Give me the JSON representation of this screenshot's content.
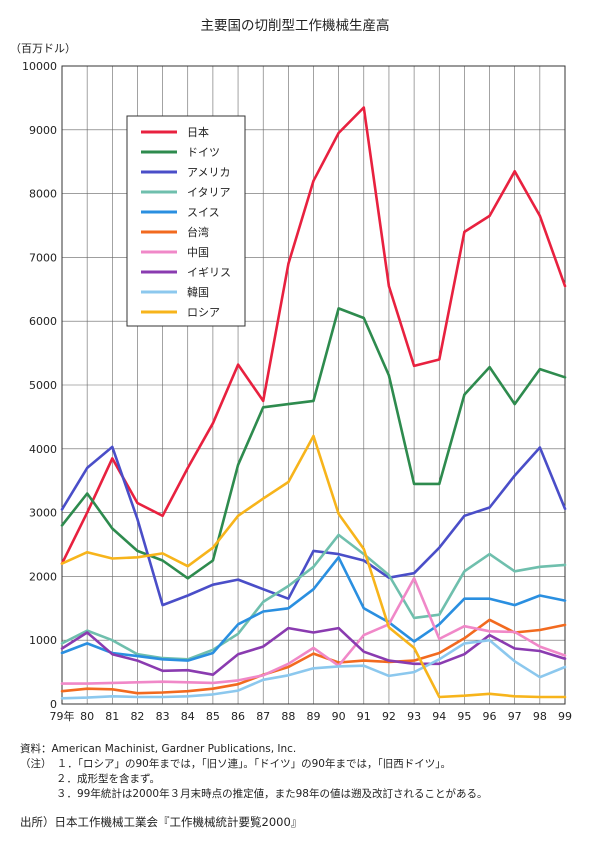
{
  "chart_data": {
    "type": "line",
    "title": "主要国の切削型工作機械生産高",
    "ylabel": "（百万ドル）",
    "ylim": [
      0,
      10000
    ],
    "yticks": [
      0,
      1000,
      2000,
      3000,
      4000,
      5000,
      6000,
      7000,
      8000,
      9000,
      10000
    ],
    "x_labels": [
      "79年",
      "80",
      "81",
      "82",
      "83",
      "84",
      "85",
      "86",
      "87",
      "88",
      "89",
      "90",
      "91",
      "92",
      "93",
      "94",
      "95",
      "96",
      "97",
      "98",
      "99"
    ],
    "grid": true,
    "legend": "top-left",
    "series": [
      {
        "name": "日本",
        "color": "#e8213f",
        "values": [
          2200,
          3000,
          3850,
          3150,
          2950,
          3700,
          4400,
          5320,
          4750,
          6900,
          8200,
          8950,
          9350,
          6550,
          5300,
          5400,
          7400,
          7650,
          8350,
          7650,
          6550
        ]
      },
      {
        "name": "ドイツ",
        "color": "#2e8b4e",
        "values": [
          2800,
          3300,
          2750,
          2400,
          2250,
          1970,
          2250,
          3750,
          4650,
          4700,
          4750,
          6200,
          6050,
          5150,
          3450,
          3450,
          4850,
          5280,
          4700,
          5250,
          5120
        ]
      },
      {
        "name": "アメリカ",
        "color": "#4a4ec8",
        "values": [
          3050,
          3700,
          4030,
          2900,
          1550,
          1700,
          1870,
          1950,
          1800,
          1650,
          2400,
          2350,
          2250,
          1980,
          2050,
          2450,
          2950,
          3080,
          3580,
          4020,
          3060
        ]
      },
      {
        "name": "イタリア",
        "color": "#6fbfad",
        "values": [
          950,
          1150,
          1000,
          780,
          720,
          700,
          850,
          1100,
          1600,
          1850,
          2150,
          2650,
          2350,
          2020,
          1350,
          1400,
          2080,
          2350,
          2080,
          2150,
          2180
        ]
      },
      {
        "name": "スイス",
        "color": "#2a8fe0",
        "values": [
          800,
          950,
          800,
          750,
          700,
          680,
          800,
          1250,
          1450,
          1500,
          1800,
          2300,
          1500,
          1280,
          980,
          1250,
          1650,
          1650,
          1550,
          1700,
          1620
        ]
      },
      {
        "name": "台湾",
        "color": "#f26a1f",
        "values": [
          200,
          240,
          230,
          170,
          180,
          200,
          240,
          310,
          460,
          580,
          790,
          650,
          680,
          660,
          680,
          800,
          1030,
          1320,
          1120,
          1160,
          1240
        ]
      },
      {
        "name": "中国",
        "color": "#f088c8",
        "values": [
          320,
          320,
          330,
          340,
          350,
          340,
          330,
          370,
          450,
          630,
          880,
          600,
          1080,
          1250,
          1970,
          1020,
          1220,
          1140,
          1130,
          900,
          760
        ]
      },
      {
        "name": "イギリス",
        "color": "#8a3bb0",
        "values": [
          870,
          1120,
          780,
          680,
          520,
          530,
          460,
          780,
          900,
          1190,
          1120,
          1190,
          820,
          680,
          630,
          630,
          780,
          1080,
          870,
          830,
          710
        ]
      },
      {
        "name": "韓国",
        "color": "#8cc8ee",
        "values": [
          90,
          100,
          120,
          110,
          110,
          120,
          150,
          210,
          380,
          450,
          560,
          590,
          600,
          440,
          500,
          700,
          950,
          1000,
          670,
          420,
          580
        ]
      },
      {
        "name": "ロシア",
        "color": "#f7b41b",
        "values": [
          2200,
          2380,
          2280,
          2300,
          2360,
          2160,
          2450,
          2950,
          3220,
          3480,
          4200,
          2980,
          2430,
          1200,
          880,
          110,
          130,
          160,
          120,
          110,
          110
        ]
      }
    ]
  },
  "notes": {
    "source_line": "資料：American Machinist, Gardner Publications, Inc.",
    "note1": "（注）　１．「ロシア」の90年までは，「旧ソ連」。「ドイツ」の90年までは，「旧西ドイツ」。",
    "note2": "２．成形型を含まず。",
    "note3": "３．99年統計は2000年３月末時点の推定値，また98年の値は遡及改訂されることがある。"
  },
  "source": "出所）日本工作機械工業会『工作機械統計要覧2000』"
}
